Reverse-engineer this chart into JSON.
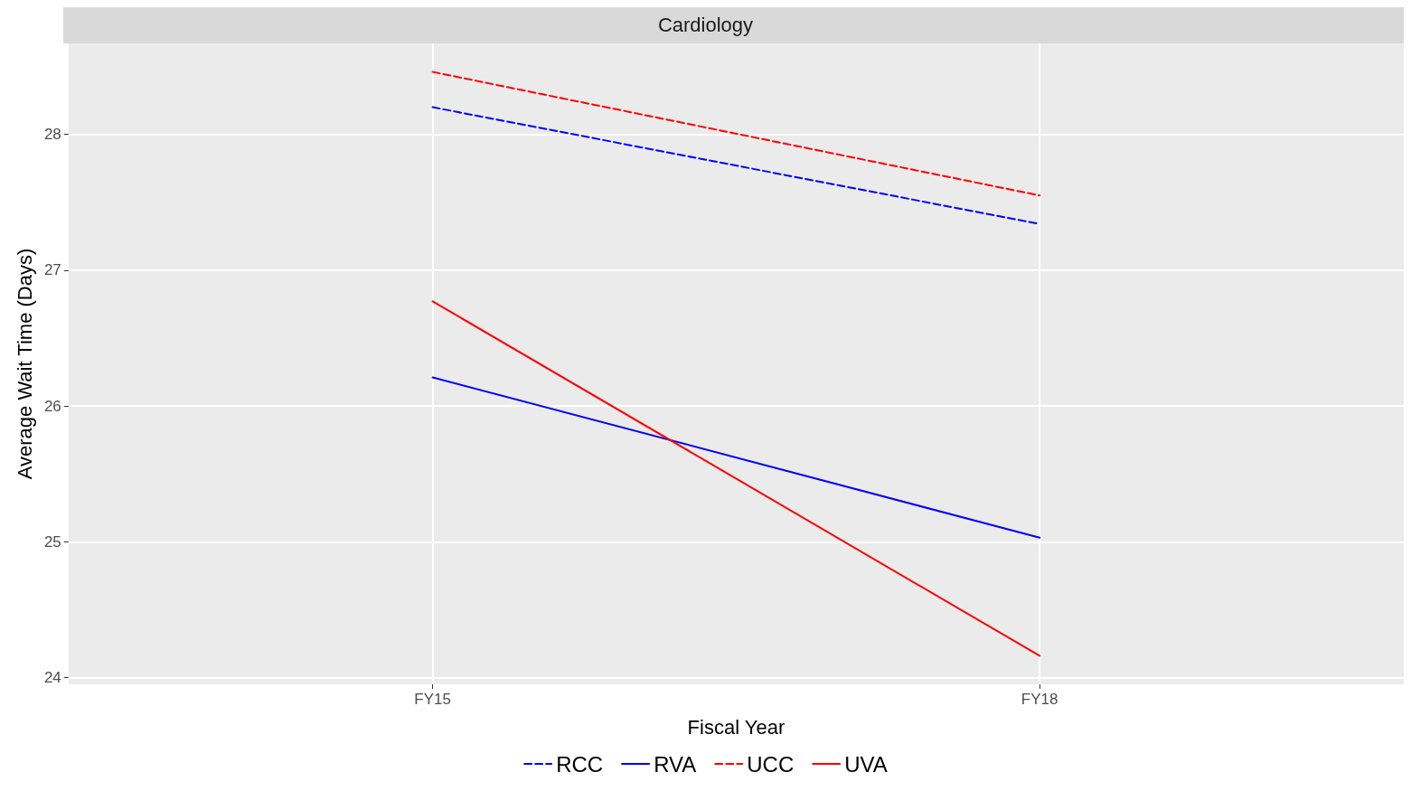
{
  "chart_data": {
    "type": "line",
    "title": "Cardiology",
    "xlabel": "Fiscal Year",
    "ylabel": "Average Wait Time (Days)",
    "categories": [
      "FY15",
      "FY18"
    ],
    "series": [
      {
        "name": "RCC",
        "color": "#0000ff",
        "line_style": "dashed",
        "values": [
          28.2,
          27.34
        ]
      },
      {
        "name": "RVA",
        "color": "#0000ff",
        "line_style": "solid",
        "values": [
          26.21,
          25.03
        ]
      },
      {
        "name": "UCC",
        "color": "#ff0000",
        "line_style": "dashed",
        "values": [
          28.46,
          27.55
        ]
      },
      {
        "name": "UVA",
        "color": "#ff0000",
        "line_style": "solid",
        "values": [
          26.77,
          24.16
        ]
      }
    ],
    "ylim": [
      23.95,
      28.67
    ],
    "yticks": [
      24,
      25,
      26,
      27,
      28
    ],
    "grid": true,
    "legend": "bottom",
    "marker": "none"
  }
}
